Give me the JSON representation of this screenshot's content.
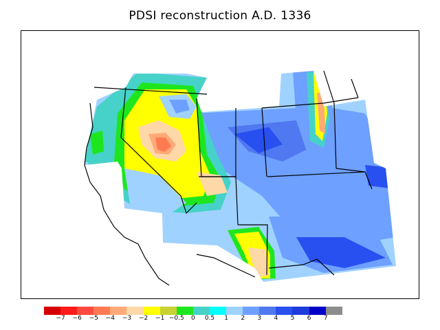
{
  "title": "PDSI reconstruction A.D. 1336",
  "legend": {
    "colors": [
      "#d70000",
      "#ff1a1a",
      "#ff4a40",
      "#ff7a50",
      "#ffaa78",
      "#ffd8a8",
      "#ffff00",
      "#c8d232",
      "#1ee61e",
      "#46d2c8",
      "#00ffff",
      "#a0d2ff",
      "#6ea0ff",
      "#5078f0",
      "#2850f0",
      "#1e3cdc",
      "#0000c8",
      "#8c8c8c"
    ],
    "labels": [
      "−7",
      "−6",
      "−5",
      "−4",
      "−3",
      "−2",
      "−1",
      "−0.5",
      "0",
      "0.5",
      "1",
      "2",
      "3",
      "4",
      "5",
      "6",
      "7"
    ]
  }
}
